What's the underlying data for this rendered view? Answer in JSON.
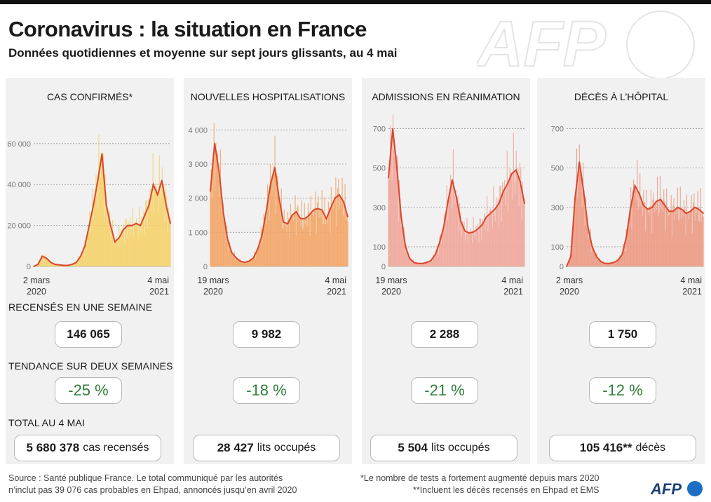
{
  "header": {
    "title": "Coronavirus : la situation en France",
    "subtitle": "Données quotidiennes et moyenne sur sept jours glissants, au 4 mai"
  },
  "colors": {
    "line": "#d9462b",
    "bars": [
      "#f5d26b",
      "#f3a566",
      "#f0a79a",
      "#ec9a84"
    ],
    "trend": "#2f7d3a"
  },
  "chart_data": [
    {
      "type": "line",
      "title": "CAS CONFIRMÉS*",
      "x_start_label": [
        "2 mars",
        "2020"
      ],
      "x_end_label": [
        "4 mai",
        "2021"
      ],
      "yticks": [
        0,
        20000,
        40000,
        60000
      ],
      "ytick_labels": [
        "0",
        "20 000",
        "40 000",
        "60 000"
      ],
      "ylim": [
        0,
        75000
      ],
      "series": [
        {
          "values": [
            0,
            1000,
            5000,
            4000,
            2000,
            1000,
            800,
            500,
            500,
            1000,
            2000,
            5000,
            10000,
            20000,
            30000,
            42000,
            55000,
            30000,
            20000,
            12000,
            14000,
            18000,
            20000,
            20000,
            21000,
            20000,
            25000,
            30000,
            40000,
            35000,
            42000,
            30000,
            21000
          ]
        }
      ],
      "bar_max": 80000
    },
    {
      "type": "line",
      "title": "NOUVELLES HOSPITALISATIONS",
      "x_start_label": [
        "19 mars",
        "2020"
      ],
      "x_end_label": [
        "4 mai",
        "2021"
      ],
      "yticks": [
        0,
        1000,
        2000,
        3000,
        4000
      ],
      "ytick_labels": [
        "0",
        "1 000",
        "2 000",
        "3 000",
        "4 000"
      ],
      "ylim": [
        0,
        4500
      ],
      "series": [
        {
          "values": [
            2200,
            3600,
            2800,
            1600,
            800,
            400,
            250,
            150,
            120,
            150,
            250,
            500,
            900,
            1600,
            2400,
            2900,
            2000,
            1300,
            1250,
            1500,
            1600,
            1400,
            1400,
            1500,
            1650,
            1700,
            1650,
            1400,
            1700,
            2000,
            2100,
            1900,
            1450
          ]
        }
      ],
      "bar_max": 4200
    },
    {
      "type": "line",
      "title": "ADMISSIONS EN RÉANIMATION",
      "x_start_label": [
        "19 mars",
        "2020"
      ],
      "x_end_label": [
        "4 mai",
        "2021"
      ],
      "yticks": [
        0,
        100,
        300,
        500,
        700
      ],
      "ytick_labels": [
        "0",
        "100",
        "300",
        "500",
        "700"
      ],
      "ylim": [
        0,
        780
      ],
      "series": [
        {
          "values": [
            450,
            700,
            500,
            250,
            100,
            40,
            20,
            15,
            15,
            20,
            30,
            60,
            120,
            200,
            330,
            440,
            350,
            230,
            180,
            170,
            175,
            190,
            210,
            250,
            270,
            290,
            320,
            380,
            420,
            470,
            490,
            430,
            320
          ]
        }
      ],
      "bar_max": 770
    },
    {
      "type": "line",
      "title": "DÉCÈS À L’HÔPITAL",
      "x_start_label": [
        "2 mars",
        "2020"
      ],
      "x_end_label": [
        "4 mai",
        "2021"
      ],
      "yticks": [
        0,
        100,
        300,
        500,
        700
      ],
      "ytick_labels": [
        "0",
        "100",
        "300",
        "500",
        "700"
      ],
      "ylim": [
        0,
        780
      ],
      "series": [
        {
          "values": [
            0,
            50,
            350,
            530,
            380,
            200,
            100,
            50,
            25,
            15,
            15,
            20,
            30,
            60,
            150,
            300,
            410,
            370,
            310,
            290,
            300,
            330,
            340,
            310,
            280,
            280,
            300,
            290,
            270,
            280,
            300,
            290,
            270
          ]
        }
      ],
      "bar_max": 620
    }
  ],
  "sections": {
    "weekly": "RECENSÉS EN UNE SEMAINE",
    "trend": "TENDANCE SUR DEUX SEMAINES",
    "total": "TOTAL AU 4 MAI"
  },
  "weekly_values": [
    "146 065",
    "9 982",
    "2 288",
    "1 750"
  ],
  "trend_values": [
    "-25 %",
    "-18 %",
    "-21 %",
    "-12 %"
  ],
  "totals": [
    {
      "value": "5 680 378",
      "unit": "cas recensés"
    },
    {
      "value": "28 427",
      "unit": "lits occupés"
    },
    {
      "value": "5 504",
      "unit": "lits occupés"
    },
    {
      "value": "105 416**",
      "unit": "décès"
    }
  ],
  "footer": {
    "source_line1": "Source : Santé publique France. Le total communiqué par les autorités",
    "source_line2": "n’inclut pas 39 076 cas probables en Ehpad, annoncés jusqu’en avril 2020",
    "note_line1": "*Le nombre de tests a fortement augmenté depuis mars 2020",
    "note_line2": "**Incluent les décès recensés en Ehpad et EMS"
  },
  "branding": {
    "watermark_text": "AFP",
    "logo_text": "AFP"
  }
}
